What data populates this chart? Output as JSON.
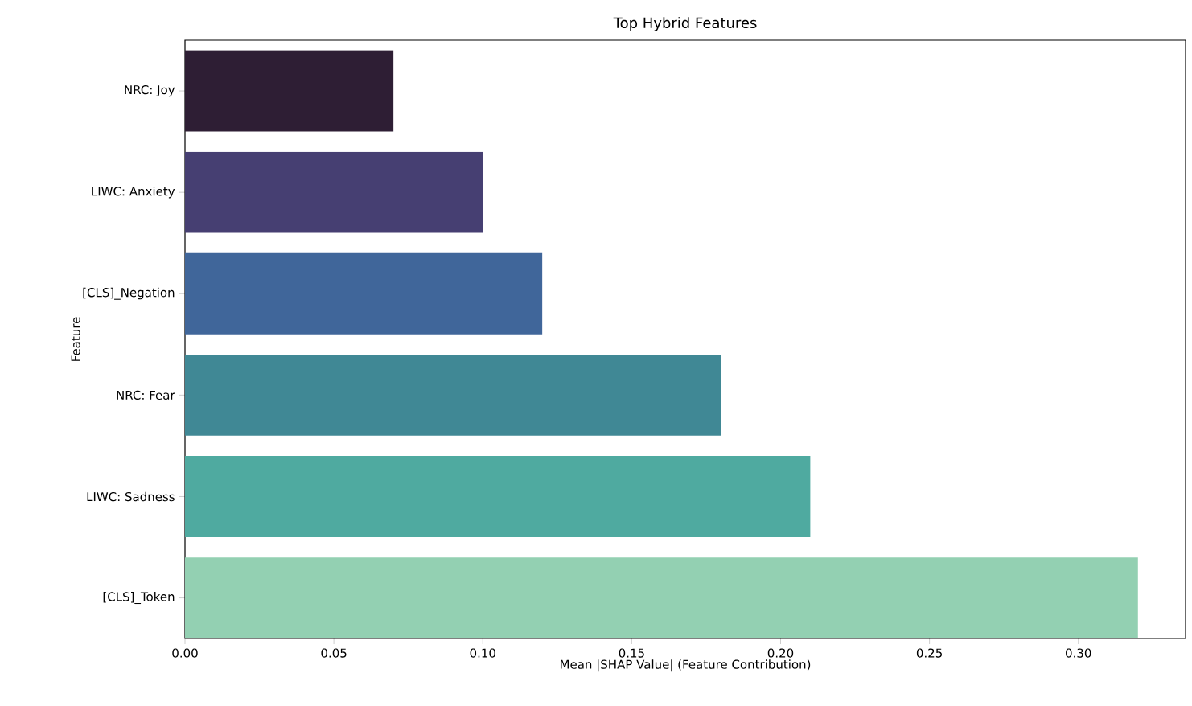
{
  "chart_data": {
    "type": "bar",
    "orientation": "horizontal",
    "title": "Top Hybrid Features",
    "xlabel": "Mean |SHAP Value| (Feature Contribution)",
    "ylabel": "Feature",
    "categories": [
      "NRC: Joy",
      "LIWC: Anxiety",
      "[CLS]_Negation",
      "NRC: Fear",
      "LIWC: Sadness",
      "[CLS]_Token"
    ],
    "values": [
      0.07,
      0.1,
      0.12,
      0.18,
      0.21,
      0.32
    ],
    "colors": [
      "#2e1e34",
      "#463f72",
      "#40669a",
      "#408895",
      "#4faaa0",
      "#93d0b2"
    ],
    "xlim": [
      0,
      0.336
    ],
    "xticks": [
      {
        "value": 0,
        "label": "0.00"
      },
      {
        "value": 0.05,
        "label": "0.05"
      },
      {
        "value": 0.1,
        "label": "0.10"
      },
      {
        "value": 0.15,
        "label": "0.15"
      },
      {
        "value": 0.2,
        "label": "0.20"
      },
      {
        "value": 0.25,
        "label": "0.25"
      },
      {
        "value": 0.3,
        "label": "0.30"
      }
    ],
    "grid": false
  }
}
